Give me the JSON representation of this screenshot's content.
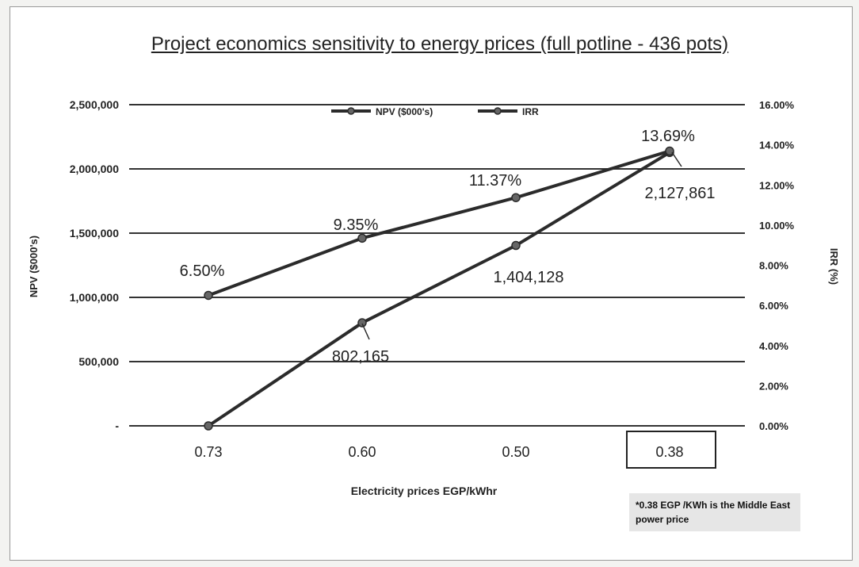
{
  "chart_data": {
    "type": "line",
    "title": "Project economics sensitivity to energy prices (full potline - 436 pots)",
    "xlabel": "Electricity prices EGP/kWhr",
    "ylabel_left": "NPV ($000's)",
    "ylabel_right": "IRR (%)",
    "categories": [
      "0.73",
      "0.60",
      "0.50",
      "0.38"
    ],
    "highlighted_category": "0.38",
    "y_left": {
      "lim": [
        0,
        2500000
      ],
      "ticks": [
        0,
        500000,
        1000000,
        1500000,
        2000000,
        2500000
      ],
      "tick_labels": [
        "-",
        "500,000",
        "1,000,000",
        "1,500,000",
        "2,000,000",
        "2,500,000"
      ]
    },
    "y_right": {
      "lim": [
        0,
        16
      ],
      "ticks": [
        0,
        2,
        4,
        6,
        8,
        10,
        12,
        14,
        16
      ],
      "tick_labels": [
        "0.00%",
        "2.00%",
        "4.00%",
        "6.00%",
        "8.00%",
        "10.00%",
        "12.00%",
        "14.00%",
        "16.00%"
      ]
    },
    "grid": true,
    "legend_position": "top-center",
    "series": [
      {
        "name": "NPV ($000's)",
        "axis": "left",
        "values": [
          0,
          802165,
          1404128,
          2127861
        ],
        "labels": [
          "",
          "802,165",
          "1,404,128",
          "2,127,861"
        ]
      },
      {
        "name": "IRR",
        "axis": "right",
        "values": [
          6.5,
          9.35,
          11.37,
          13.69
        ],
        "labels": [
          "6.50%",
          "9.35%",
          "11.37%",
          "13.69%"
        ]
      }
    ],
    "footnote": "*0.38 EGP /KWh is the Middle East power price",
    "colors": {
      "line": "#2b2b2b",
      "grid": "#333333",
      "marker": "#666666"
    }
  }
}
